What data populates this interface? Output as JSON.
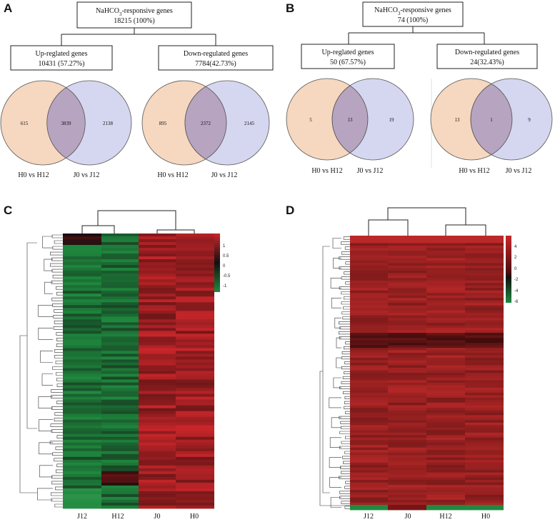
{
  "panels": {
    "a": {
      "letter": "A",
      "root_line1": "NaHCO",
      "root_sub": "3",
      "root_line1b": "-responsive genes",
      "root_line2": "18215 (100%)",
      "up_line1": "Up-reglated genes",
      "up_line2": "10431 (57.27%)",
      "down_line1": "Down-regulated genes",
      "down_line2": "7784(42.73%)",
      "venn_up": {
        "left": "615",
        "overlap": "3839",
        "right": "2138",
        "label_left": "H0 vs H12",
        "label_right": "J0 vs J12"
      },
      "venn_down": {
        "left": "895",
        "overlap": "2372",
        "right": "2145",
        "label_left": "H0 vs H12",
        "label_right": "J0 vs J12"
      }
    },
    "b": {
      "letter": "B",
      "root_line1": "NaHCO",
      "root_sub": "3",
      "root_line1b": "-responsive genes",
      "root_line2": "74 (100%)",
      "up_line1": "Up-reglated genes",
      "up_line2": "50 (67.57%)",
      "down_line1": "Down-regulated genes",
      "down_line2": "24(32.43%)",
      "venn_up": {
        "left": "5",
        "overlap": "13",
        "right": "19",
        "label_left": "H0 vs H12",
        "label_right": "J0 vs J12"
      },
      "venn_down": {
        "left": "13",
        "overlap": "1",
        "right": "9",
        "label_left": "H0 vs H12",
        "label_right": "J0 vs J12"
      }
    },
    "c": {
      "letter": "C",
      "columns": [
        "J12",
        "H12",
        "J0",
        "H0"
      ],
      "colorbar_ticks": [
        "1",
        "0.5",
        "0",
        "-0.5",
        "-1"
      ]
    },
    "d": {
      "letter": "D",
      "columns": [
        "J12",
        "J0",
        "H12",
        "H0"
      ],
      "colorbar_ticks": [
        "4",
        "2",
        "0",
        "-2",
        "-4",
        "-6"
      ]
    }
  },
  "colors": {
    "venn_left": "#f6d7bf",
    "venn_right": "#c7c8ea",
    "heat_high": "#c8262a",
    "heat_mid": "#111111",
    "heat_low": "#1f8a3f"
  }
}
